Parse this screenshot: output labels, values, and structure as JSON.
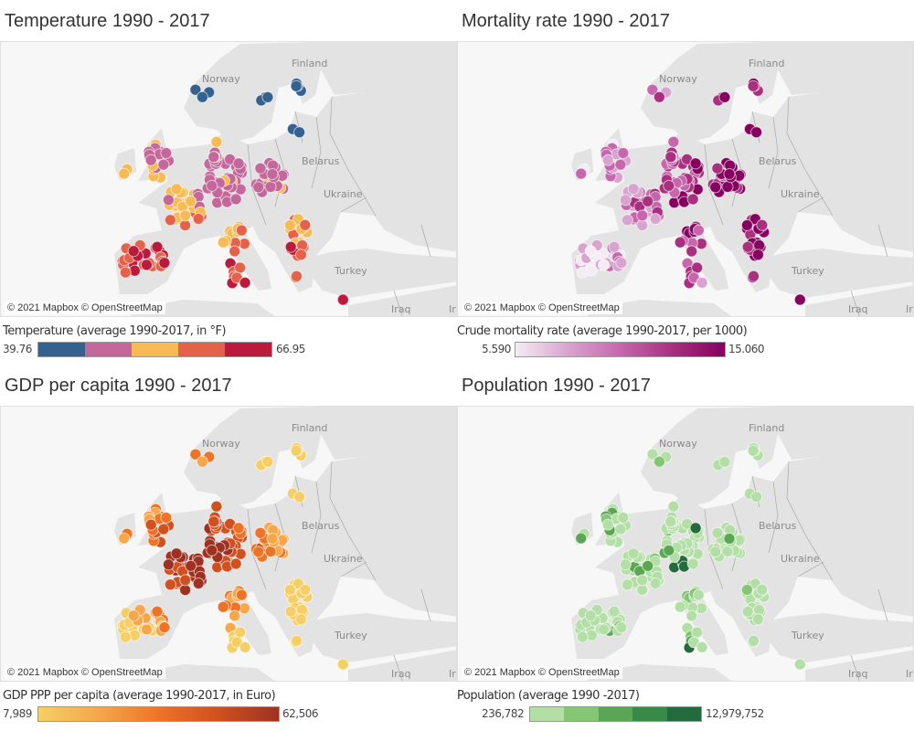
{
  "panels": [
    {
      "title": "Temperature 1990 - 2017",
      "legend_title": "Temperature (average 1990-2017, in °F)",
      "min": "39.76",
      "max": "66.95",
      "colors": [
        "#34618e",
        "#c4679a",
        "#f6bb55",
        "#e6614a",
        "#ba1b3d"
      ],
      "scale": "stepped"
    },
    {
      "title": "Mortality rate 1990 - 2017",
      "legend_title": "Crude mortality rate (average 1990-2017, per 1000)",
      "min": "5.590",
      "max": "15.060",
      "colors": [
        "#f4ecf3",
        "#d9a3cf",
        "#c667ad",
        "#a8307f",
        "#860060"
      ],
      "scale": "continuous"
    },
    {
      "title": "GDP per capita  1990 - 2017",
      "legend_title": "GDP PPP per capita (average 1990-2017, in Euro)",
      "min": "7,989",
      "max": "62,506",
      "colors": [
        "#f5cf65",
        "#f5a74a",
        "#ef7325",
        "#d0501f",
        "#9e3222"
      ],
      "scale": "continuous"
    },
    {
      "title": "Population 1990 - 2017",
      "legend_title": "Population (average 1990 -2017)",
      "min": "236,782",
      "max": "12,979,752",
      "colors": [
        "#b3dfa6",
        "#84c674",
        "#5aa654",
        "#378a47",
        "#236a3c"
      ],
      "scale": "stepped"
    }
  ],
  "map_labels": {
    "norway": "Norway",
    "finland": "Finland",
    "belarus": "Belarus",
    "ukraine": "Ukraine",
    "turkey": "Turkey",
    "iraq": "Iraq",
    "iran": "Ira"
  },
  "attribution": "© 2021 Mapbox © OpenStreetMap"
}
